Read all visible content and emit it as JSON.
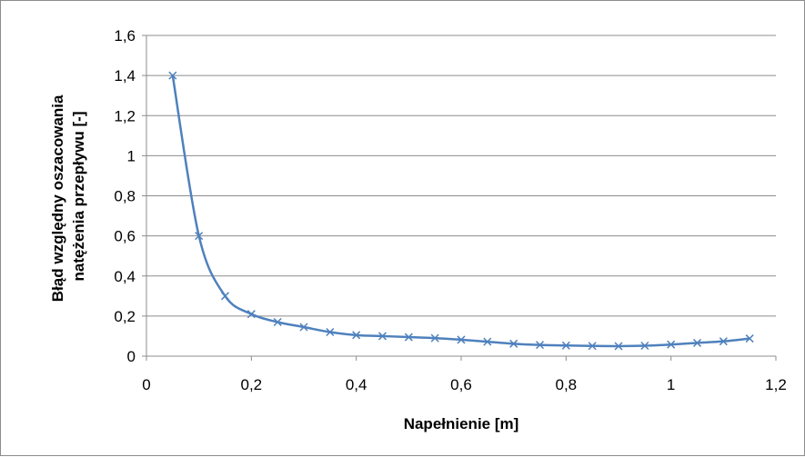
{
  "chart_data": {
    "type": "line",
    "title": "",
    "xlabel": "Napełnienie [m]",
    "ylabel_lines": [
      "Błąd względny oszacowania",
      "natężenia przepływu [-]"
    ],
    "xlim": [
      0,
      1.2
    ],
    "ylim": [
      0,
      1.6
    ],
    "x_ticks": [
      0,
      0.2,
      0.4,
      0.6,
      0.8,
      1,
      1.2
    ],
    "x_tick_labels": [
      "0",
      "0,2",
      "0,4",
      "0,6",
      "0,8",
      "1",
      "1,2"
    ],
    "y_ticks": [
      0,
      0.2,
      0.4,
      0.6,
      0.8,
      1,
      1.2,
      1.4,
      1.6
    ],
    "y_tick_labels": [
      "0",
      "0,2",
      "0,4",
      "0,6",
      "0,8",
      "1",
      "1,2",
      "1,4",
      "1,6"
    ],
    "grid": "horizontal",
    "legend": "none",
    "series_color": "#4f81bd",
    "marker": "x",
    "x": [
      0.05,
      0.1,
      0.15,
      0.2,
      0.25,
      0.3,
      0.35,
      0.4,
      0.45,
      0.5,
      0.55,
      0.6,
      0.65,
      0.7,
      0.75,
      0.8,
      0.85,
      0.9,
      0.95,
      1.0,
      1.05,
      1.1,
      1.15
    ],
    "values": [
      1.4,
      0.6,
      0.3,
      0.21,
      0.17,
      0.145,
      0.12,
      0.105,
      0.1,
      0.095,
      0.09,
      0.082,
      0.072,
      0.062,
      0.056,
      0.053,
      0.051,
      0.05,
      0.052,
      0.058,
      0.066,
      0.074,
      0.088
    ]
  }
}
